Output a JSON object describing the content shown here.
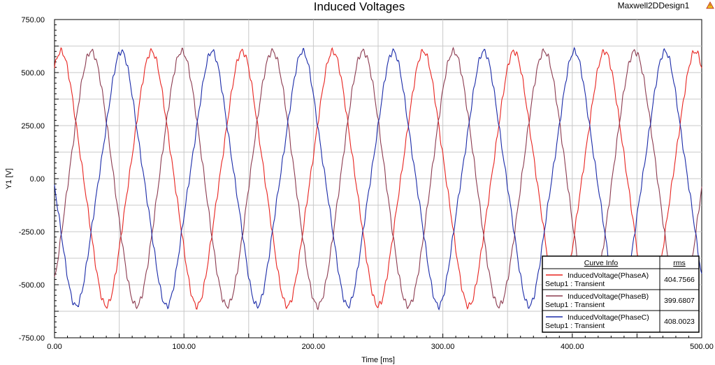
{
  "design_name": "Maxwell2DDesign1",
  "chart_data": {
    "type": "line",
    "title": "Induced Voltages",
    "xlabel": "Time [ms]",
    "ylabel": "Y1 [V]",
    "xlim": [
      0,
      500
    ],
    "ylim": [
      -750,
      750
    ],
    "x_ticks": [
      "0.00",
      "100.00",
      "200.00",
      "300.00",
      "400.00",
      "500.00"
    ],
    "y_ticks": [
      "750.00",
      "500.00",
      "250.00",
      "0.00",
      "-250.00",
      "-500.00",
      "-750.00"
    ],
    "grid": true,
    "legend_position": "bottom-right",
    "waveform": {
      "amplitude": 600,
      "period_ms": 70,
      "first_peak_ms": 5,
      "phase_shift_deg": 120
    },
    "series": [
      {
        "name": "InducedVoltage(PhaseA)",
        "setup": "Setup1 : Transient",
        "rms": "404.7566",
        "color": "#e8231f"
      },
      {
        "name": "InducedVoltage(PhaseB)",
        "setup": "Setup1 : Transient",
        "rms": "399.6807",
        "color": "#8b3a4f"
      },
      {
        "name": "InducedVoltage(PhaseC)",
        "setup": "Setup1 : Transient",
        "rms": "408.0023",
        "color": "#1a2aa8"
      }
    ],
    "legend_header": {
      "curve_info": "Curve Info",
      "rms": "rms"
    }
  }
}
